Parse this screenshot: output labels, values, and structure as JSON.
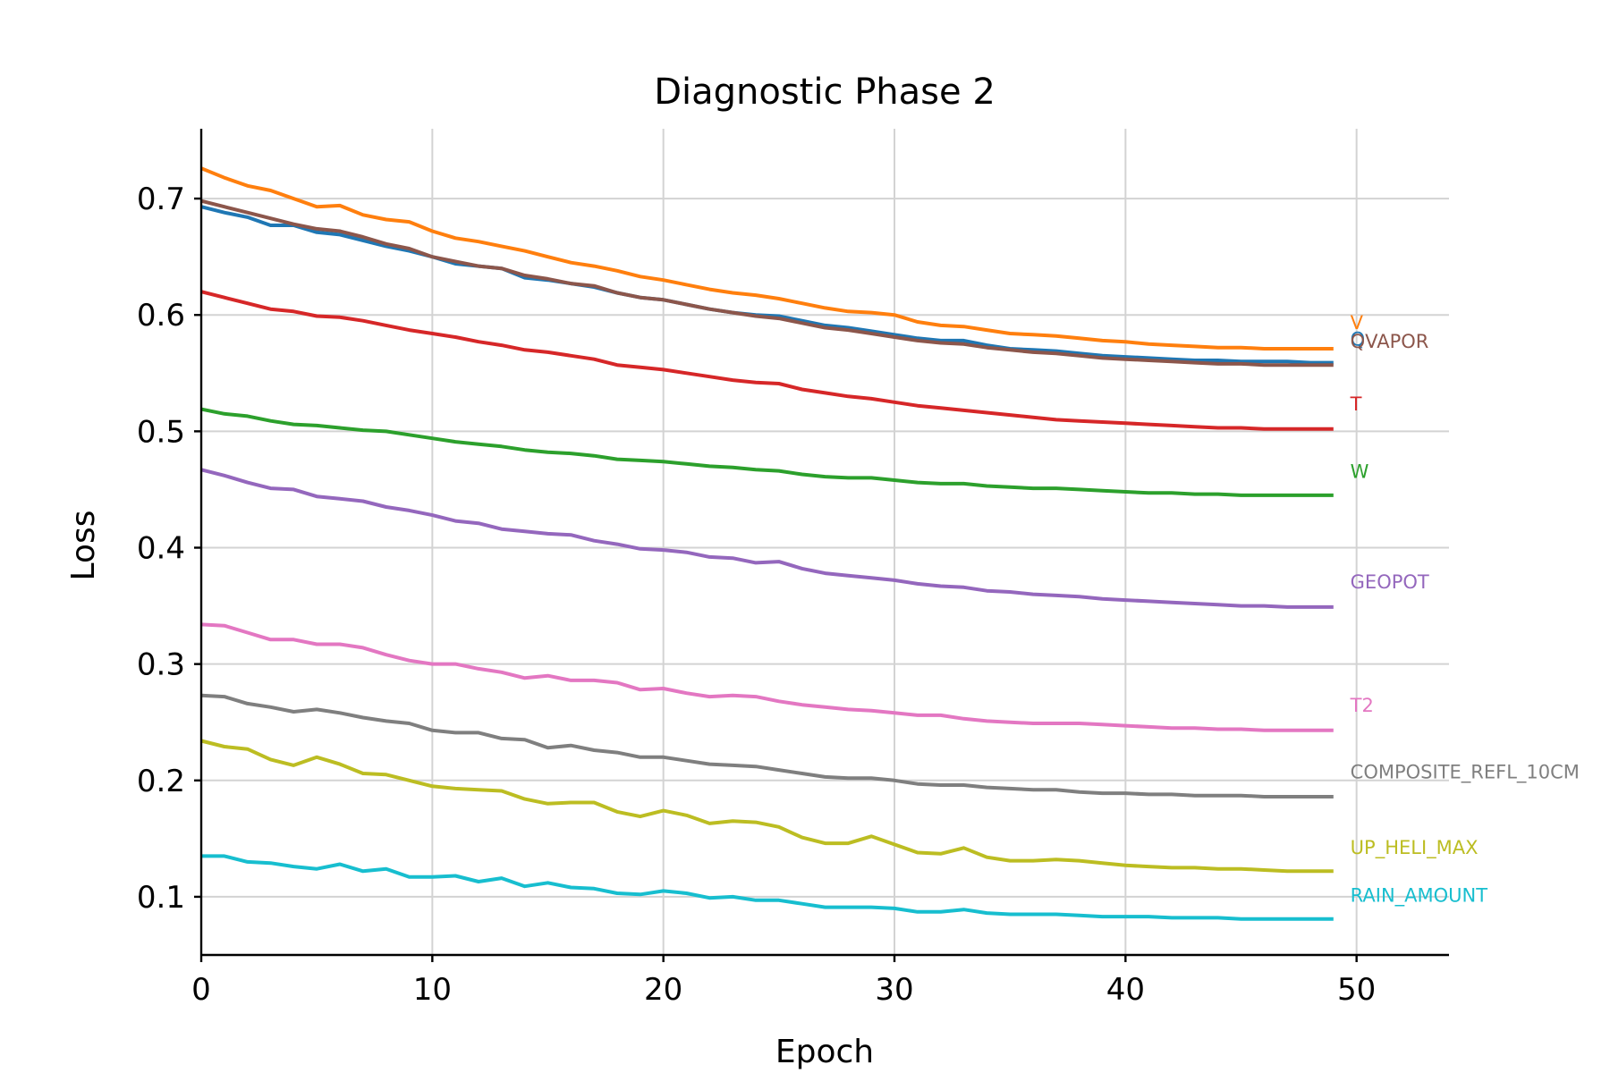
{
  "chart_data": {
    "type": "line",
    "title": "Diagnostic Phase 2",
    "xlabel": "Epoch",
    "ylabel": "Loss",
    "xlim": [
      0,
      54
    ],
    "ylim": [
      0.05,
      0.76
    ],
    "xticks": [
      0,
      10,
      20,
      30,
      40,
      50
    ],
    "xtick_labels": [
      "0",
      "10",
      "20",
      "30",
      "40",
      "50"
    ],
    "yticks": [
      0.1,
      0.2,
      0.3,
      0.4,
      0.5,
      0.6,
      0.7
    ],
    "ytick_labels": [
      "0.1",
      "0.2",
      "0.3",
      "0.4",
      "0.5",
      "0.6",
      "0.7"
    ],
    "grid": true,
    "legend": "inline labels at right end of each line",
    "x": [
      0,
      1,
      2,
      3,
      4,
      5,
      6,
      7,
      8,
      9,
      10,
      11,
      12,
      13,
      14,
      15,
      16,
      17,
      18,
      19,
      20,
      21,
      22,
      23,
      24,
      25,
      26,
      27,
      28,
      29,
      30,
      31,
      32,
      33,
      34,
      35,
      36,
      37,
      38,
      39,
      40,
      41,
      42,
      43,
      44,
      45,
      46,
      47,
      48,
      49
    ],
    "series": [
      {
        "name": "V",
        "color": "#ff7f0e",
        "label_value": 0.594,
        "values": [
          0.726,
          0.718,
          0.711,
          0.707,
          0.7,
          0.693,
          0.694,
          0.686,
          0.682,
          0.68,
          0.672,
          0.666,
          0.663,
          0.659,
          0.655,
          0.65,
          0.645,
          0.642,
          0.638,
          0.633,
          0.63,
          0.626,
          0.622,
          0.619,
          0.617,
          0.614,
          0.61,
          0.606,
          0.603,
          0.602,
          0.6,
          0.594,
          0.591,
          0.59,
          0.587,
          0.584,
          0.583,
          0.582,
          0.58,
          0.578,
          0.577,
          0.575,
          0.574,
          0.573,
          0.572,
          0.572,
          0.571,
          0.571,
          0.571,
          0.571
        ]
      },
      {
        "name": "Q",
        "color": "#1f77b4",
        "label_value": 0.58,
        "values": [
          0.693,
          0.688,
          0.684,
          0.677,
          0.677,
          0.671,
          0.669,
          0.664,
          0.659,
          0.655,
          0.65,
          0.644,
          0.642,
          0.64,
          0.632,
          0.63,
          0.627,
          0.624,
          0.619,
          0.615,
          0.613,
          0.609,
          0.605,
          0.602,
          0.6,
          0.599,
          0.595,
          0.591,
          0.589,
          0.586,
          0.583,
          0.58,
          0.578,
          0.578,
          0.574,
          0.571,
          0.57,
          0.569,
          0.567,
          0.565,
          0.564,
          0.563,
          0.562,
          0.561,
          0.561,
          0.56,
          0.56,
          0.56,
          0.559,
          0.559
        ]
      },
      {
        "name": "QVAPOR",
        "color": "#8c564b",
        "label_value": 0.578,
        "values": [
          0.698,
          0.693,
          0.688,
          0.683,
          0.678,
          0.674,
          0.672,
          0.667,
          0.661,
          0.657,
          0.65,
          0.646,
          0.642,
          0.64,
          0.634,
          0.631,
          0.627,
          0.625,
          0.619,
          0.615,
          0.613,
          0.609,
          0.605,
          0.602,
          0.599,
          0.597,
          0.593,
          0.589,
          0.587,
          0.584,
          0.581,
          0.578,
          0.576,
          0.575,
          0.572,
          0.57,
          0.568,
          0.567,
          0.565,
          0.563,
          0.562,
          0.561,
          0.56,
          0.559,
          0.558,
          0.558,
          0.557,
          0.557,
          0.557,
          0.557
        ]
      },
      {
        "name": "T",
        "color": "#d62728",
        "label_value": 0.524,
        "values": [
          0.62,
          0.615,
          0.61,
          0.605,
          0.603,
          0.599,
          0.598,
          0.595,
          0.591,
          0.587,
          0.584,
          0.581,
          0.577,
          0.574,
          0.57,
          0.568,
          0.565,
          0.562,
          0.557,
          0.555,
          0.553,
          0.55,
          0.547,
          0.544,
          0.542,
          0.541,
          0.536,
          0.533,
          0.53,
          0.528,
          0.525,
          0.522,
          0.52,
          0.518,
          0.516,
          0.514,
          0.512,
          0.51,
          0.509,
          0.508,
          0.507,
          0.506,
          0.505,
          0.504,
          0.503,
          0.503,
          0.502,
          0.502,
          0.502,
          0.502
        ]
      },
      {
        "name": "W",
        "color": "#2ca02c",
        "label_value": 0.466,
        "values": [
          0.519,
          0.515,
          0.513,
          0.509,
          0.506,
          0.505,
          0.503,
          0.501,
          0.5,
          0.497,
          0.494,
          0.491,
          0.489,
          0.487,
          0.484,
          0.482,
          0.481,
          0.479,
          0.476,
          0.475,
          0.474,
          0.472,
          0.47,
          0.469,
          0.467,
          0.466,
          0.463,
          0.461,
          0.46,
          0.46,
          0.458,
          0.456,
          0.455,
          0.455,
          0.453,
          0.452,
          0.451,
          0.451,
          0.45,
          0.449,
          0.448,
          0.447,
          0.447,
          0.446,
          0.446,
          0.445,
          0.445,
          0.445,
          0.445,
          0.445
        ]
      },
      {
        "name": "GEOPOT",
        "color": "#9467bd",
        "label_value": 0.371,
        "values": [
          0.467,
          0.462,
          0.456,
          0.451,
          0.45,
          0.444,
          0.442,
          0.44,
          0.435,
          0.432,
          0.428,
          0.423,
          0.421,
          0.416,
          0.414,
          0.412,
          0.411,
          0.406,
          0.403,
          0.399,
          0.398,
          0.396,
          0.392,
          0.391,
          0.387,
          0.388,
          0.382,
          0.378,
          0.376,
          0.374,
          0.372,
          0.369,
          0.367,
          0.366,
          0.363,
          0.362,
          0.36,
          0.359,
          0.358,
          0.356,
          0.355,
          0.354,
          0.353,
          0.352,
          0.351,
          0.35,
          0.35,
          0.349,
          0.349,
          0.349
        ]
      },
      {
        "name": "T2",
        "color": "#e377c2",
        "label_value": 0.265,
        "values": [
          0.334,
          0.333,
          0.327,
          0.321,
          0.321,
          0.317,
          0.317,
          0.314,
          0.308,
          0.303,
          0.3,
          0.3,
          0.296,
          0.293,
          0.288,
          0.29,
          0.286,
          0.286,
          0.284,
          0.278,
          0.279,
          0.275,
          0.272,
          0.273,
          0.272,
          0.268,
          0.265,
          0.263,
          0.261,
          0.26,
          0.258,
          0.256,
          0.256,
          0.253,
          0.251,
          0.25,
          0.249,
          0.249,
          0.249,
          0.248,
          0.247,
          0.246,
          0.245,
          0.245,
          0.244,
          0.244,
          0.243,
          0.243,
          0.243,
          0.243
        ]
      },
      {
        "name": "COMPOSITE_REFL_10CM",
        "color": "#7f7f7f",
        "label_value": 0.208,
        "values": [
          0.273,
          0.272,
          0.266,
          0.263,
          0.259,
          0.261,
          0.258,
          0.254,
          0.251,
          0.249,
          0.243,
          0.241,
          0.241,
          0.236,
          0.235,
          0.228,
          0.23,
          0.226,
          0.224,
          0.22,
          0.22,
          0.217,
          0.214,
          0.213,
          0.212,
          0.209,
          0.206,
          0.203,
          0.202,
          0.202,
          0.2,
          0.197,
          0.196,
          0.196,
          0.194,
          0.193,
          0.192,
          0.192,
          0.19,
          0.189,
          0.189,
          0.188,
          0.188,
          0.187,
          0.187,
          0.187,
          0.186,
          0.186,
          0.186,
          0.186
        ]
      },
      {
        "name": "UP_HELI_MAX",
        "color": "#bcbd22",
        "label_value": 0.143,
        "values": [
          0.234,
          0.229,
          0.227,
          0.218,
          0.213,
          0.22,
          0.214,
          0.206,
          0.205,
          0.2,
          0.195,
          0.193,
          0.192,
          0.191,
          0.184,
          0.18,
          0.181,
          0.181,
          0.173,
          0.169,
          0.174,
          0.17,
          0.163,
          0.165,
          0.164,
          0.16,
          0.151,
          0.146,
          0.146,
          0.152,
          0.145,
          0.138,
          0.137,
          0.142,
          0.134,
          0.131,
          0.131,
          0.132,
          0.131,
          0.129,
          0.127,
          0.126,
          0.125,
          0.125,
          0.124,
          0.124,
          0.123,
          0.122,
          0.122,
          0.122
        ]
      },
      {
        "name": "RAIN_AMOUNT",
        "color": "#17becf",
        "label_value": 0.102,
        "values": [
          0.135,
          0.135,
          0.13,
          0.129,
          0.126,
          0.124,
          0.128,
          0.122,
          0.124,
          0.117,
          0.117,
          0.118,
          0.113,
          0.116,
          0.109,
          0.112,
          0.108,
          0.107,
          0.103,
          0.102,
          0.105,
          0.103,
          0.099,
          0.1,
          0.097,
          0.097,
          0.094,
          0.091,
          0.091,
          0.091,
          0.09,
          0.087,
          0.087,
          0.089,
          0.086,
          0.085,
          0.085,
          0.085,
          0.084,
          0.083,
          0.083,
          0.083,
          0.082,
          0.082,
          0.082,
          0.081,
          0.081,
          0.081,
          0.081,
          0.081
        ]
      }
    ]
  }
}
